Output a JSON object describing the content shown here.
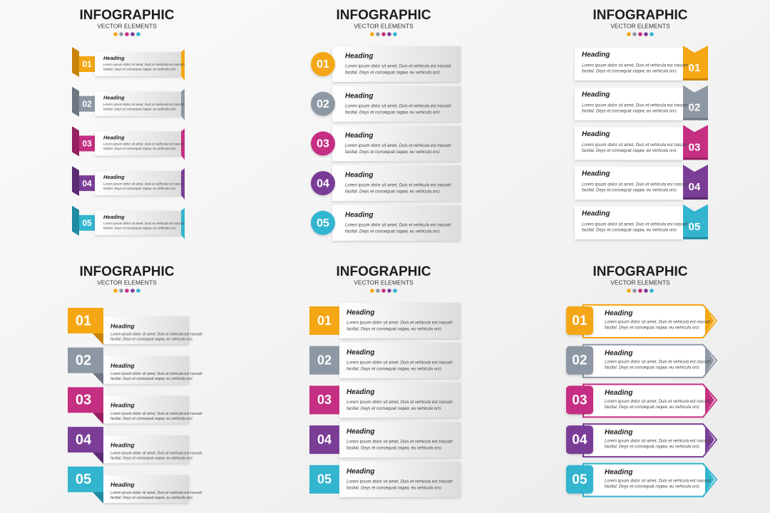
{
  "panels": [
    {
      "title": "INFOGRAPHIC",
      "subtitle": "VECTOR ELEMENTS",
      "items": [
        {
          "number": "01",
          "heading": "Heading",
          "line1": "Lorem ipsum dolor sit amet, Duis et vehicula est nassah",
          "line2": "facilial. Deys et consequat raqaw, eu vehicula orci."
        },
        {
          "number": "02",
          "heading": "Heading",
          "line1": "Lorem ipsum dolor sit amet, Duis et vehicula est nassah",
          "line2": "facilial. Deys et consequat raqaw, eu vehicula orci."
        },
        {
          "number": "03",
          "heading": "Heading",
          "line1": "Lorem ipsum dolor sit amet, Duis et vehicula est nassah",
          "line2": "facilial. Deys et consequat raqaw, eu vehicula orci."
        },
        {
          "number": "04",
          "heading": "Heading",
          "line1": "Lorem ipsum dolor sit amet, Duis et vehicula est nassah",
          "line2": "facilial. Deys et consequat raqaw, eu vehicula orci."
        },
        {
          "number": "05",
          "heading": "Heading",
          "line1": "Lorem ipsum dolor sit amet, Duis et vehicula est nassah",
          "line2": "facilial. Deys et consequat raqaw, eu vehicula orci."
        }
      ]
    },
    {
      "title": "INFOGRAPHIC",
      "subtitle": "VECTOR ELEMENTS",
      "items": [
        {
          "number": "01",
          "heading": "Heading",
          "line1": "Lorem ipsum dolor sit amet, Duis et vehicula est nassah",
          "line2": "facilial. Deys et consequat raqaw, eu vehicula orci."
        },
        {
          "number": "02",
          "heading": "Heading",
          "line1": "Lorem ipsum dolor sit amet, Duis et vehicula est nassah",
          "line2": "facilial. Deys et consequat raqaw, eu vehicula orci."
        },
        {
          "number": "03",
          "heading": "Heading",
          "line1": "Lorem ipsum dolor sit amet, Duis et vehicula est nassah",
          "line2": "facilial. Deys et consequat raqaw, eu vehicula orci."
        },
        {
          "number": "04",
          "heading": "Heading",
          "line1": "Lorem ipsum dolor sit amet, Duis et vehicula est nassah",
          "line2": "facilial. Deys et consequat raqaw, eu vehicula orci."
        },
        {
          "number": "05",
          "heading": "Heading",
          "line1": "Lorem ipsum dolor sit amet, Duis et vehicula est nassah",
          "line2": "facilial. Deys et consequat raqaw, eu vehicula orci."
        }
      ]
    },
    {
      "title": "INFOGRAPHIC",
      "subtitle": "VECTOR ELEMENTS",
      "items": [
        {
          "number": "01",
          "heading": "Heading",
          "line1": "Lorem ipsum dolor sit amet, Duis et vehicula est nassah",
          "line2": "facilial. Deys et consequat raqaw, eu vehicula orci."
        },
        {
          "number": "02",
          "heading": "Heading",
          "line1": "Lorem ipsum dolor sit amet, Duis et vehicula est nassah",
          "line2": "facilial. Deys et consequat raqaw, eu vehicula orci."
        },
        {
          "number": "03",
          "heading": "Heading",
          "line1": "Lorem ipsum dolor sit amet, Duis et vehicula est nassah",
          "line2": "facilial. Deys et consequat raqaw, eu vehicula orci."
        },
        {
          "number": "04",
          "heading": "Heading",
          "line1": "Lorem ipsum dolor sit amet, Duis et vehicula est nassah",
          "line2": "facilial. Deys et consequat raqaw, eu vehicula orci."
        },
        {
          "number": "05",
          "heading": "Heading",
          "line1": "Lorem ipsum dolor sit amet, Duis et vehicula est nassah",
          "line2": "facilial. Deys et consequat raqaw, eu vehicula orci."
        }
      ]
    },
    {
      "title": "INFOGRAPHIC",
      "subtitle": "VECTOR ELEMENTS",
      "items": [
        {
          "number": "01",
          "heading": "Heading",
          "line1": "Lorem ipsum dolor sit amet, Duis et vehicula est nassah",
          "line2": "facilial. Deys et consequat raqaw, eu vehicula orci."
        },
        {
          "number": "02",
          "heading": "Heading",
          "line1": "Lorem ipsum dolor sit amet, Duis et vehicula est nassah",
          "line2": "facilial. Deys et consequat raqaw, eu vehicula orci."
        },
        {
          "number": "03",
          "heading": "Heading",
          "line1": "Lorem ipsum dolor sit amet, Duis et vehicula est nassah",
          "line2": "facilial. Deys et consequat raqaw, eu vehicula orci."
        },
        {
          "number": "04",
          "heading": "Heading",
          "line1": "Lorem ipsum dolor sit amet, Duis et vehicula est nassah",
          "line2": "facilial. Deys et consequat raqaw, eu vehicula orci."
        },
        {
          "number": "05",
          "heading": "Heading",
          "line1": "Lorem ipsum dolor sit amet, Duis et vehicula est nassah",
          "line2": "facilial. Deys et consequat raqaw, eu vehicula orci."
        }
      ]
    },
    {
      "title": "INFOGRAPHIC",
      "subtitle": "VECTOR ELEMENTS",
      "items": [
        {
          "number": "01",
          "heading": "Heading",
          "line1": "Lorem ipsum dolor sit amet, Duis et vehicula est nassah",
          "line2": "facilial. Deys et consequat raqaw, eu vehicula orci."
        },
        {
          "number": "02",
          "heading": "Heading",
          "line1": "Lorem ipsum dolor sit amet, Duis et vehicula est nassah",
          "line2": "facilial. Deys et consequat raqaw, eu vehicula orci."
        },
        {
          "number": "03",
          "heading": "Heading",
          "line1": "Lorem ipsum dolor sit amet, Duis et vehicula est nassah",
          "line2": "facilial. Deys et consequat raqaw, eu vehicula orci."
        },
        {
          "number": "04",
          "heading": "Heading",
          "line1": "Lorem ipsum dolor sit amet, Duis et vehicula est nassah",
          "line2": "facilial. Deys et consequat raqaw, eu vehicula orci."
        },
        {
          "number": "05",
          "heading": "Heading",
          "line1": "Lorem ipsum dolor sit amet, Duis et vehicula est nassah",
          "line2": "facilial. Deys et consequat raqaw, eu vehicula orci."
        }
      ]
    },
    {
      "title": "INFOGRAPHIC",
      "subtitle": "VECTOR ELEMENTS",
      "items": [
        {
          "number": "01",
          "heading": "Heading",
          "line1": "Lorem ipsum dolor sit amet, Duis et vehicula est nassah",
          "line2": "facilial. Deys et consequat raqaw, eu vehicula orci."
        },
        {
          "number": "02",
          "heading": "Heading",
          "line1": "Lorem ipsum dolor sit amet, Duis et vehicula est nassah",
          "line2": "facilial. Deys et consequat raqaw, eu vehicula orci."
        },
        {
          "number": "03",
          "heading": "Heading",
          "line1": "Lorem ipsum dolor sit amet, Duis et vehicula est nassah",
          "line2": "facilial. Deys et consequat raqaw, eu vehicula orci."
        },
        {
          "number": "04",
          "heading": "Heading",
          "line1": "Lorem ipsum dolor sit amet, Duis et vehicula est nassah",
          "line2": "facilial. Deys et consequat raqaw, eu vehicula orci."
        },
        {
          "number": "05",
          "heading": "Heading",
          "line1": "Lorem ipsum dolor sit amet, Duis et vehicula est nassah",
          "line2": "facilial. Deys et consequat raqaw, eu vehicula orci."
        }
      ]
    }
  ]
}
